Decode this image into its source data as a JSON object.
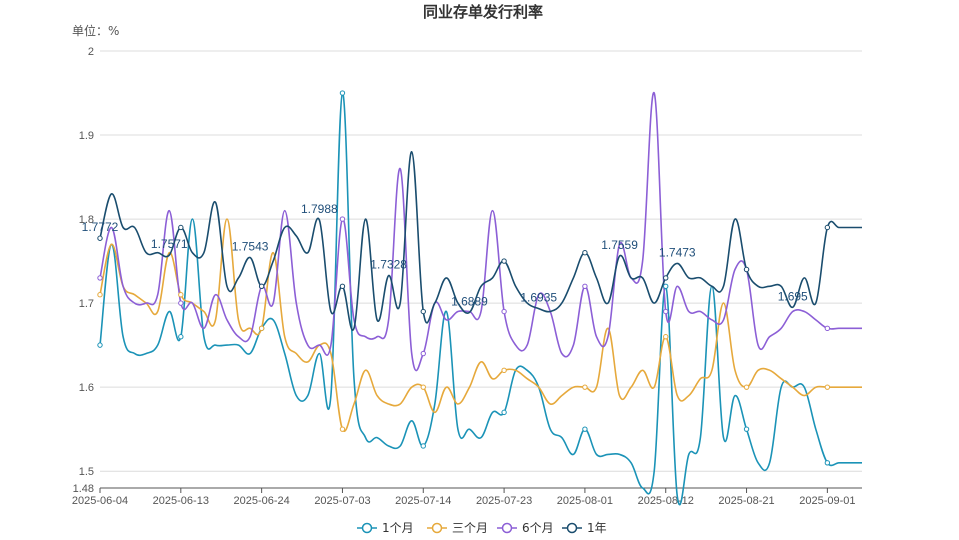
{
  "chart_data": {
    "type": "line",
    "title": "同业存单发行利率",
    "unit_label": "单位：%",
    "xlabel": "",
    "ylabel": "",
    "ylim": [
      1.48,
      2.0
    ],
    "y_ticks": [
      1.48,
      1.5,
      1.6,
      1.7,
      1.8,
      1.9,
      2
    ],
    "x_tick_labels": [
      "2025-06-04",
      "2025-06-13",
      "2025-06-24",
      "2025-07-03",
      "2025-07-14",
      "2025-07-23",
      "2025-08-01",
      "2025-08-12",
      "2025-08-21",
      "2025-09-01"
    ],
    "x_count": 67,
    "x_tick_indices": [
      0,
      7,
      14,
      21,
      28,
      35,
      42,
      49,
      56,
      63
    ],
    "legend": [
      "1个月",
      "三个月",
      "6个月",
      "1年"
    ],
    "legend_position": "bottom",
    "grid": true,
    "series": [
      {
        "name": "1个月",
        "color": "#1b93b7",
        "values": [
          1.65,
          1.77,
          1.66,
          1.64,
          1.64,
          1.65,
          1.69,
          1.66,
          1.8,
          1.66,
          1.65,
          1.65,
          1.65,
          1.64,
          1.67,
          1.68,
          1.64,
          1.59,
          1.59,
          1.64,
          1.59,
          1.95,
          1.61,
          1.54,
          1.54,
          1.53,
          1.53,
          1.56,
          1.53,
          1.58,
          1.69,
          1.55,
          1.55,
          1.54,
          1.57,
          1.57,
          1.62,
          1.62,
          1.6,
          1.55,
          1.54,
          1.52,
          1.55,
          1.52,
          1.52,
          1.52,
          1.51,
          1.48,
          1.5,
          1.72,
          1.47,
          1.52,
          1.54,
          1.72,
          1.54,
          1.59,
          1.55,
          1.51,
          1.51,
          1.6,
          1.6,
          1.6,
          1.55,
          1.51,
          1.51,
          1.51,
          1.51
        ]
      },
      {
        "name": "三个月",
        "color": "#e6a93c",
        "values": [
          1.71,
          1.77,
          1.72,
          1.71,
          1.7,
          1.69,
          1.76,
          1.71,
          1.7,
          1.69,
          1.68,
          1.8,
          1.68,
          1.67,
          1.67,
          1.76,
          1.66,
          1.64,
          1.63,
          1.65,
          1.64,
          1.55,
          1.58,
          1.62,
          1.59,
          1.58,
          1.58,
          1.6,
          1.6,
          1.57,
          1.6,
          1.58,
          1.6,
          1.63,
          1.61,
          1.62,
          1.62,
          1.61,
          1.6,
          1.58,
          1.59,
          1.6,
          1.6,
          1.6,
          1.67,
          1.59,
          1.6,
          1.62,
          1.6,
          1.66,
          1.59,
          1.59,
          1.61,
          1.62,
          1.7,
          1.62,
          1.6,
          1.62,
          1.62,
          1.61,
          1.6,
          1.59,
          1.6,
          1.6,
          1.6,
          1.6,
          1.6
        ]
      },
      {
        "name": "6个月",
        "color": "#8c5fd6",
        "values": [
          1.73,
          1.79,
          1.72,
          1.7,
          1.7,
          1.71,
          1.81,
          1.7,
          1.7,
          1.67,
          1.71,
          1.68,
          1.66,
          1.66,
          1.72,
          1.7,
          1.81,
          1.7,
          1.65,
          1.65,
          1.65,
          1.8,
          1.68,
          1.66,
          1.66,
          1.68,
          1.86,
          1.64,
          1.64,
          1.7,
          1.68,
          1.69,
          1.69,
          1.69,
          1.81,
          1.69,
          1.65,
          1.65,
          1.71,
          1.69,
          1.64,
          1.65,
          1.72,
          1.66,
          1.66,
          1.77,
          1.73,
          1.75,
          1.95,
          1.69,
          1.72,
          1.69,
          1.69,
          1.68,
          1.68,
          1.74,
          1.74,
          1.65,
          1.66,
          1.67,
          1.69,
          1.69,
          1.68,
          1.67,
          1.67,
          1.67,
          1.67
        ]
      },
      {
        "name": "1年",
        "color": "#1a4d6e",
        "values": [
          1.7772,
          1.83,
          1.79,
          1.79,
          1.76,
          1.76,
          1.7571,
          1.79,
          1.76,
          1.76,
          1.82,
          1.72,
          1.73,
          1.7543,
          1.72,
          1.75,
          1.79,
          1.78,
          1.76,
          1.7988,
          1.69,
          1.72,
          1.67,
          1.8,
          1.68,
          1.7328,
          1.7,
          1.88,
          1.69,
          1.7,
          1.73,
          1.7,
          1.6889,
          1.72,
          1.73,
          1.75,
          1.72,
          1.7,
          1.6935,
          1.69,
          1.7,
          1.73,
          1.76,
          1.73,
          1.7,
          1.7559,
          1.73,
          1.73,
          1.7,
          1.73,
          1.7473,
          1.73,
          1.73,
          1.72,
          1.72,
          1.8,
          1.74,
          1.72,
          1.72,
          1.72,
          1.695,
          1.73,
          1.7,
          1.79,
          1.79,
          1.79,
          1.79
        ]
      }
    ],
    "data_labels": [
      {
        "series": "1年",
        "index": 0,
        "text": "1.7772"
      },
      {
        "series": "1年",
        "index": 6,
        "text": "1.7571"
      },
      {
        "series": "1年",
        "index": 13,
        "text": "1.7543"
      },
      {
        "series": "1年",
        "index": 19,
        "text": "1.7988"
      },
      {
        "series": "1年",
        "index": 25,
        "text": "1.7328"
      },
      {
        "series": "1年",
        "index": 32,
        "text": "1.6889"
      },
      {
        "series": "1年",
        "index": 38,
        "text": "1.6935"
      },
      {
        "series": "1年",
        "index": 45,
        "text": "1.7559"
      },
      {
        "series": "1年",
        "index": 50,
        "text": "1.7473"
      },
      {
        "series": "1年",
        "index": 60,
        "text": "1.695"
      }
    ]
  }
}
